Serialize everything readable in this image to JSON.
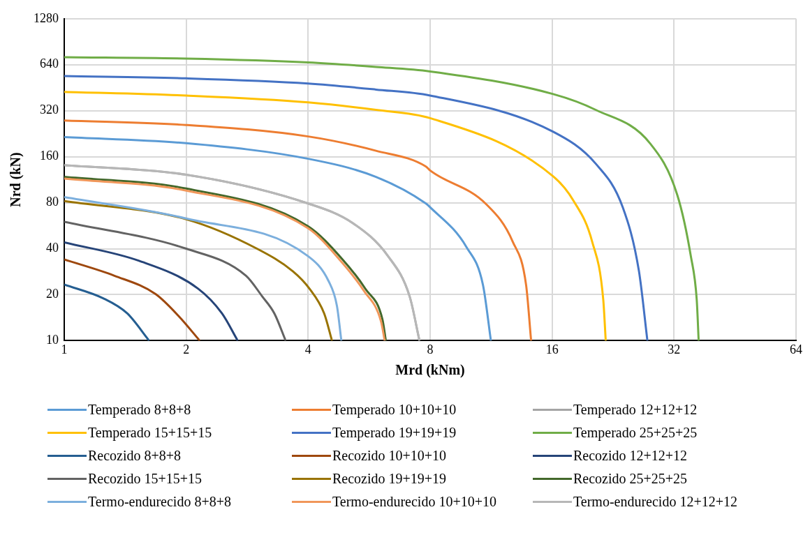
{
  "chart_data": {
    "type": "line",
    "xlabel": "Mrd (kNm)",
    "ylabel": "Nrd (kN)",
    "log": "xy",
    "xlim": [
      1,
      64
    ],
    "xticks": [
      1,
      2,
      4,
      8,
      16,
      32,
      64
    ],
    "ylim": [
      10,
      1280
    ],
    "yticks": [
      10,
      20,
      40,
      80,
      160,
      320,
      640,
      1280
    ],
    "grid": true,
    "legend": "bottom",
    "marker": "none",
    "line_style": "solid",
    "series": [
      {
        "name": "Temperado 8+8+8",
        "color": "#5b9bd5",
        "x": [
          1,
          2,
          4,
          5.88,
          7.81,
          8,
          9.84,
          10.8,
          11.3
        ],
        "values": [
          215,
          196,
          155,
          118,
          79,
          74.7,
          40.9,
          23.2,
          10
        ]
      },
      {
        "name": "Temperado 10+10+10",
        "color": "#ed7d31",
        "x": [
          1,
          2,
          4,
          5.88,
          7.81,
          8,
          11,
          12.8,
          13.8,
          14.2
        ],
        "values": [
          276,
          258,
          217,
          175,
          138,
          130,
          78.2,
          44.3,
          23.2,
          10
        ]
      },
      {
        "name": "Temperado 12+12+12",
        "color": "#a5a5a5",
        "x": [
          1,
          2,
          4,
          5.15,
          6.3,
          7.12,
          7.53
        ],
        "values": [
          141,
          122,
          79,
          58.9,
          35.7,
          19.5,
          10
        ]
      },
      {
        "name": "Temperado 15+15+15",
        "color": "#ffc000",
        "x": [
          1,
          2,
          4,
          5.88,
          8,
          16.1,
          18.1,
          20.1,
          21.4,
          21.7
        ],
        "values": [
          425,
          402,
          363,
          324,
          286,
          119,
          81.8,
          44.3,
          18.5,
          10
        ]
      },
      {
        "name": "Temperado 19+19+19",
        "color": "#4472c4",
        "x": [
          1,
          2,
          4,
          5.88,
          8,
          16.1,
          20.5,
          23.9,
          26.2,
          27.5
        ],
        "values": [
          540,
          521,
          482,
          440,
          402,
          233,
          144,
          74.7,
          28.7,
          10
        ]
      },
      {
        "name": "Temperado 25+25+25",
        "color": "#70ad47",
        "x": [
          1,
          2,
          4,
          5.88,
          8,
          16.1,
          20.5,
          27.9,
          32.6,
          35.2,
          36.4,
          36.8
        ],
        "values": [
          716,
          701,
          662,
          619,
          578,
          411,
          324,
          196,
          89.6,
          35.7,
          18.5,
          10
        ]
      },
      {
        "name": "Recozido 8+8+8",
        "color": "#255e91",
        "x": [
          1,
          1.25,
          1.43,
          1.62
        ],
        "values": [
          23.3,
          18.9,
          15.1,
          10
        ]
      },
      {
        "name": "Recozido 10+10+10",
        "color": "#9e480e",
        "x": [
          1,
          1.33,
          1.68,
          1.92,
          2.16
        ],
        "values": [
          34,
          26.6,
          20.2,
          14.4,
          10
        ]
      },
      {
        "name": "Recozido 12+12+12",
        "color": "#264478",
        "x": [
          1,
          1.53,
          2.14,
          2.45,
          2.68
        ],
        "values": [
          44,
          33.3,
          21.9,
          15.1,
          10
        ]
      },
      {
        "name": "Recozido 15+15+15",
        "color": "#636363",
        "x": [
          1,
          2,
          2.81,
          3.08,
          3.3,
          3.52
        ],
        "values": [
          60,
          40,
          26.6,
          19.5,
          15.1,
          10
        ]
      },
      {
        "name": "Recozido 19+19+19",
        "color": "#997300",
        "x": [
          1,
          2,
          2.99,
          3.67,
          4.03,
          4.38,
          4.58
        ],
        "values": [
          82,
          62.3,
          40,
          28.4,
          21.9,
          15.1,
          10
        ]
      },
      {
        "name": "Recozido 25+25+25",
        "color": "#43682b",
        "x": [
          1,
          2,
          4,
          4.85,
          5.54,
          6.1,
          6.22
        ],
        "values": [
          118,
          99,
          56,
          34.3,
          21.8,
          13.8,
          10
        ]
      },
      {
        "name": "Termo-endurecido 8+8+8",
        "color": "#7cafdd",
        "x": [
          1,
          2,
          4,
          4.49,
          4.71,
          4.83
        ],
        "values": [
          87,
          63,
          35.7,
          24.6,
          16.9,
          10
        ]
      },
      {
        "name": "Termo-endurecido 10+10+10",
        "color": "#f1975a",
        "x": [
          1,
          2,
          4,
          4.81,
          5.49,
          6.05,
          6.18
        ],
        "values": [
          115,
          96,
          54.4,
          33.3,
          21.2,
          13.4,
          10
        ]
      },
      {
        "name": "Termo-endurecido 12+12+12",
        "color": "#b7b7b7",
        "x": [
          1,
          2,
          4,
          5.15,
          6.3,
          7.12,
          7.53
        ],
        "values": [
          141,
          122,
          79,
          58.9,
          35.7,
          19.5,
          10
        ]
      }
    ]
  }
}
